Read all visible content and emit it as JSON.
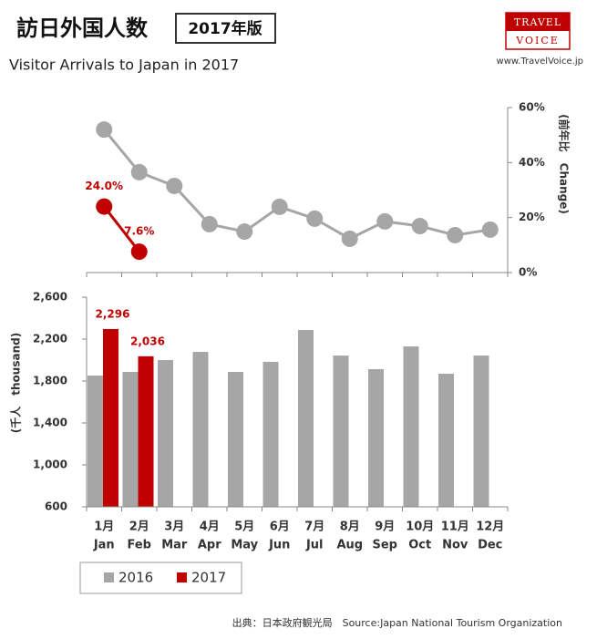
{
  "header": {
    "title": "訪日外国人数",
    "badge": "2017年版",
    "subtitle": "Visitor Arrivals to Japan in 2017",
    "logo_top": "TRAVEL",
    "logo_bottom": "VOICE",
    "url": "www.TravelVoice.jp"
  },
  "source": "出典：日本政府観光局　Source:Japan  National Tourism  Organization",
  "chart_data": [
    {
      "type": "line",
      "y_label": "(前年比　Change)",
      "ylim": [
        0,
        60
      ],
      "yticks": [
        {
          "value": 0,
          "label": "0%"
        },
        {
          "value": 20,
          "label": "20%"
        },
        {
          "value": 40,
          "label": "40%"
        },
        {
          "value": 60,
          "label": "60%"
        }
      ],
      "series": [
        {
          "color": "#a6a6a6",
          "values": [
            52.0,
            36.5,
            31.5,
            17.6,
            14.9,
            23.9,
            19.6,
            12.3,
            18.6,
            16.9,
            13.6,
            15.6
          ]
        },
        {
          "color": "#c00000",
          "values": [
            24.0,
            7.6,
            null,
            null,
            null,
            null,
            null,
            null,
            null,
            null,
            null,
            null
          ],
          "value_labels": [
            "24.0%",
            "7.6%",
            null,
            null,
            null,
            null,
            null,
            null,
            null,
            null,
            null,
            null
          ]
        }
      ]
    },
    {
      "type": "bar",
      "y_label": "(千人　thousand)",
      "ylim": [
        600,
        2600
      ],
      "yticks": [
        600,
        {
          "value": 1000,
          "label": "1,000"
        },
        {
          "value": 1400,
          "label": "1,400"
        },
        {
          "value": 1800,
          "label": "1,800"
        },
        {
          "value": 2200,
          "label": "2,200"
        },
        {
          "value": 2600,
          "label": "2,600"
        }
      ],
      "categories": [
        "Jan",
        "Feb",
        "Mar",
        "Apr",
        "May",
        "Jun",
        "Jul",
        "Aug",
        "Sep",
        "Oct",
        "Nov",
        "Dec"
      ],
      "categories_ja": [
        "1月",
        "2月",
        "3月",
        "4月",
        "5月",
        "6月",
        "7月",
        "8月",
        "9月",
        "10月",
        "11月",
        "12月"
      ],
      "legend": "bottom-left",
      "series": [
        {
          "name": "2016",
          "color": "#a6a6a6",
          "values": [
            1852,
            1887,
            2000,
            2078,
            1887,
            1983,
            2287,
            2043,
            1913,
            2130,
            1870,
            2043
          ]
        },
        {
          "name": "2017",
          "color": "#c00000",
          "values": [
            2296,
            2036,
            null,
            null,
            null,
            null,
            null,
            null,
            null,
            null,
            null,
            null
          ],
          "value_labels": [
            "2,296",
            "2,036",
            null,
            null,
            null,
            null,
            null,
            null,
            null,
            null,
            null,
            null
          ]
        }
      ]
    }
  ]
}
